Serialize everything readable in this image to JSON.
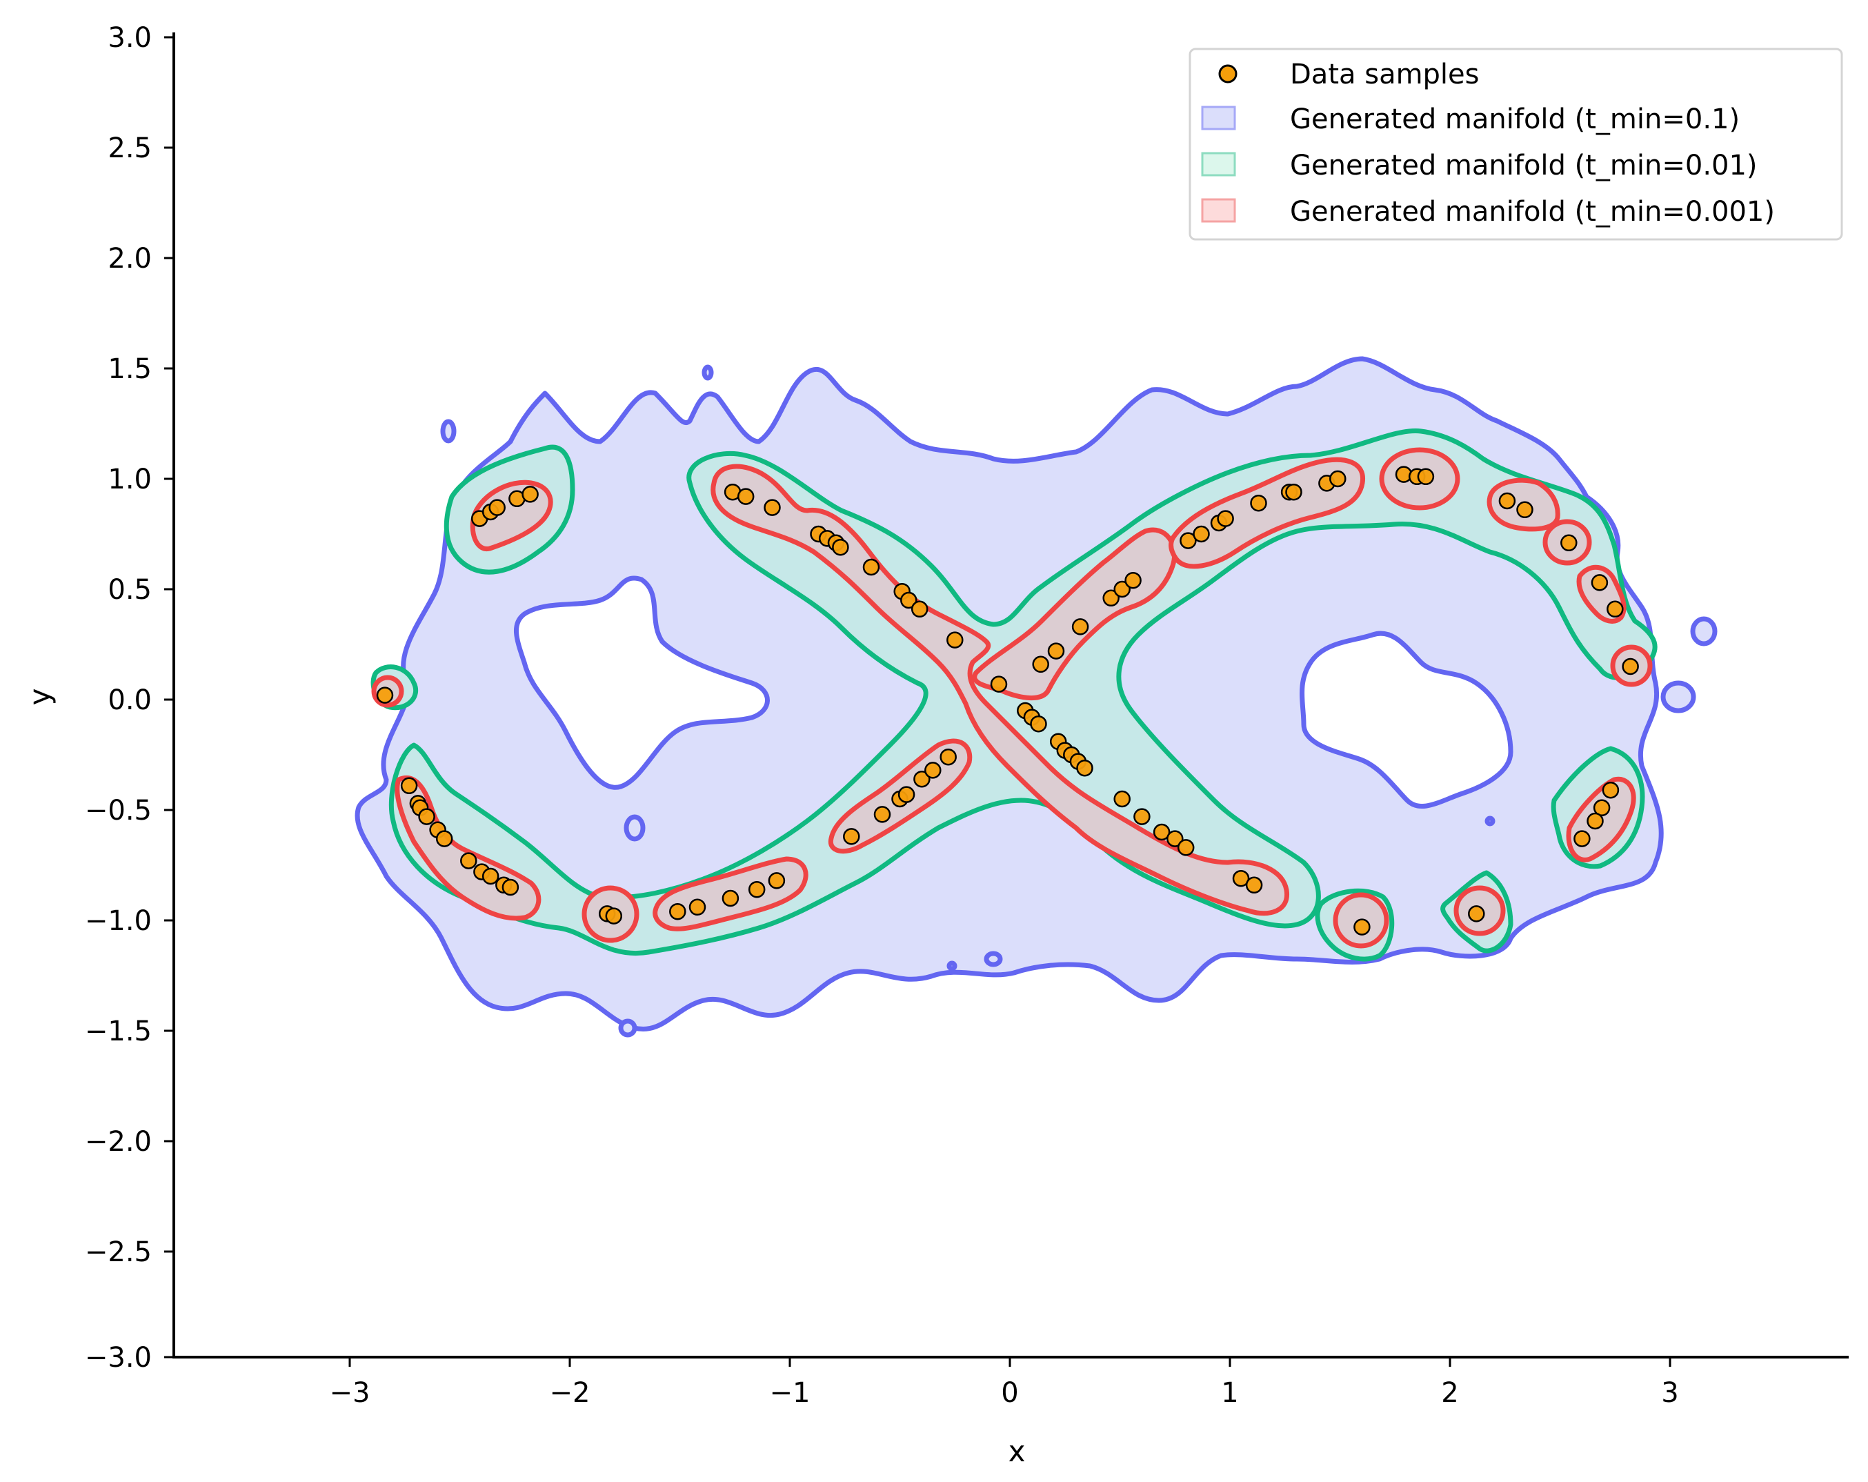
{
  "chart_data": {
    "type": "scatter",
    "title": "",
    "xlabel": "x",
    "ylabel": "y",
    "xlim": [
      -3.8,
      3.8
    ],
    "ylim": [
      -3.0,
      3.0
    ],
    "grid": false,
    "legend_position": "upper right",
    "x_ticks": [
      -3,
      -2,
      -1,
      0,
      1,
      2,
      3
    ],
    "x_tick_labels": [
      "−3",
      "−2",
      "−1",
      "0",
      "1",
      "2",
      "3"
    ],
    "y_ticks": [
      3.0,
      2.5,
      2.0,
      1.5,
      1.0,
      0.5,
      0.0,
      -0.5,
      -1.0,
      -1.5,
      -2.0,
      -2.5,
      -3.0
    ],
    "y_tick_labels": [
      "3.0",
      "2.5",
      "2.0",
      "1.5",
      "1.0",
      "0.5",
      "0.0",
      "−0.5",
      "−1.0",
      "−1.5",
      "−2.0",
      "−2.5",
      "−3.0"
    ],
    "legend": [
      {
        "label": "Data samples",
        "type": "marker",
        "color": "#f59e0b",
        "edge": "#000000"
      },
      {
        "label": "Generated manifold (t_min=0.1)",
        "type": "patch",
        "color": "#6366f1"
      },
      {
        "label": "Generated manifold (t_min=0.01)",
        "type": "patch",
        "color": "#10b981"
      },
      {
        "label": "Generated manifold (t_min=0.001)",
        "type": "patch",
        "color": "#ef4444"
      }
    ],
    "series": [
      {
        "name": "Data samples",
        "type": "scatter",
        "color": "#f59e0b",
        "points": [
          [
            -2.84,
            0.02
          ],
          [
            -2.41,
            0.82
          ],
          [
            -2.36,
            0.85
          ],
          [
            -2.33,
            0.87
          ],
          [
            -2.24,
            0.91
          ],
          [
            -2.18,
            0.93
          ],
          [
            -1.26,
            0.94
          ],
          [
            -1.2,
            0.92
          ],
          [
            -1.08,
            0.87
          ],
          [
            -0.87,
            0.75
          ],
          [
            -0.83,
            0.73
          ],
          [
            -0.79,
            0.71
          ],
          [
            -0.77,
            0.69
          ],
          [
            -0.63,
            0.6
          ],
          [
            -0.49,
            0.49
          ],
          [
            -0.46,
            0.45
          ],
          [
            -0.41,
            0.41
          ],
          [
            -0.25,
            0.27
          ],
          [
            -0.05,
            0.07
          ],
          [
            0.14,
            0.16
          ],
          [
            0.21,
            0.22
          ],
          [
            0.32,
            0.33
          ],
          [
            0.46,
            0.46
          ],
          [
            0.51,
            0.5
          ],
          [
            0.56,
            0.54
          ],
          [
            0.81,
            0.72
          ],
          [
            0.87,
            0.75
          ],
          [
            0.95,
            0.8
          ],
          [
            0.98,
            0.82
          ],
          [
            1.13,
            0.89
          ],
          [
            1.27,
            0.94
          ],
          [
            1.29,
            0.94
          ],
          [
            1.44,
            0.98
          ],
          [
            1.49,
            1.0
          ],
          [
            1.79,
            1.02
          ],
          [
            1.85,
            1.01
          ],
          [
            1.89,
            1.01
          ],
          [
            2.26,
            0.9
          ],
          [
            2.34,
            0.86
          ],
          [
            2.54,
            0.71
          ],
          [
            2.68,
            0.53
          ],
          [
            2.75,
            0.41
          ],
          [
            2.82,
            0.15
          ],
          [
            0.07,
            -0.05
          ],
          [
            0.1,
            -0.08
          ],
          [
            0.13,
            -0.11
          ],
          [
            0.22,
            -0.19
          ],
          [
            0.25,
            -0.23
          ],
          [
            0.28,
            -0.25
          ],
          [
            0.31,
            -0.28
          ],
          [
            0.34,
            -0.31
          ],
          [
            0.51,
            -0.45
          ],
          [
            0.6,
            -0.53
          ],
          [
            0.69,
            -0.6
          ],
          [
            0.75,
            -0.63
          ],
          [
            0.8,
            -0.67
          ],
          [
            1.05,
            -0.81
          ],
          [
            1.11,
            -0.84
          ],
          [
            1.6,
            -1.03
          ],
          [
            2.12,
            -0.97
          ],
          [
            2.73,
            -0.41
          ],
          [
            2.69,
            -0.49
          ],
          [
            2.66,
            -0.55
          ],
          [
            2.6,
            -0.63
          ],
          [
            -2.73,
            -0.39
          ],
          [
            -2.69,
            -0.47
          ],
          [
            -2.68,
            -0.49
          ],
          [
            -2.65,
            -0.53
          ],
          [
            -2.6,
            -0.59
          ],
          [
            -2.57,
            -0.63
          ],
          [
            -2.46,
            -0.73
          ],
          [
            -2.4,
            -0.78
          ],
          [
            -2.36,
            -0.8
          ],
          [
            -2.3,
            -0.84
          ],
          [
            -2.27,
            -0.85
          ],
          [
            -1.83,
            -0.97
          ],
          [
            -1.8,
            -0.98
          ],
          [
            -1.51,
            -0.96
          ],
          [
            -1.42,
            -0.94
          ],
          [
            -1.27,
            -0.9
          ],
          [
            -1.15,
            -0.86
          ],
          [
            -1.06,
            -0.82
          ],
          [
            -0.72,
            -0.62
          ],
          [
            -0.58,
            -0.52
          ],
          [
            -0.5,
            -0.45
          ],
          [
            -0.47,
            -0.43
          ],
          [
            -0.4,
            -0.36
          ],
          [
            -0.35,
            -0.32
          ],
          [
            -0.28,
            -0.26
          ]
        ]
      },
      {
        "name": "Generated manifold (t_min=0.1)",
        "type": "filled_contour",
        "line_color": "#6366f1",
        "fill_color": "#dbdefb",
        "description": "broad noisy lemniscate region spanning x from about -2.9 to 3.1, y from about -1.6 to 1.5"
      },
      {
        "name": "Generated manifold (t_min=0.01)",
        "type": "filled_contour",
        "line_color": "#10b981",
        "fill_color": "#c6e8e8",
        "description": "tighter figure-eight band around the data with small isolated islands"
      },
      {
        "name": "Generated manifold (t_min=0.001)",
        "type": "filled_contour",
        "line_color": "#ef4444",
        "fill_color": "#dccdd2",
        "description": "tight islands around sample clusters"
      }
    ]
  }
}
